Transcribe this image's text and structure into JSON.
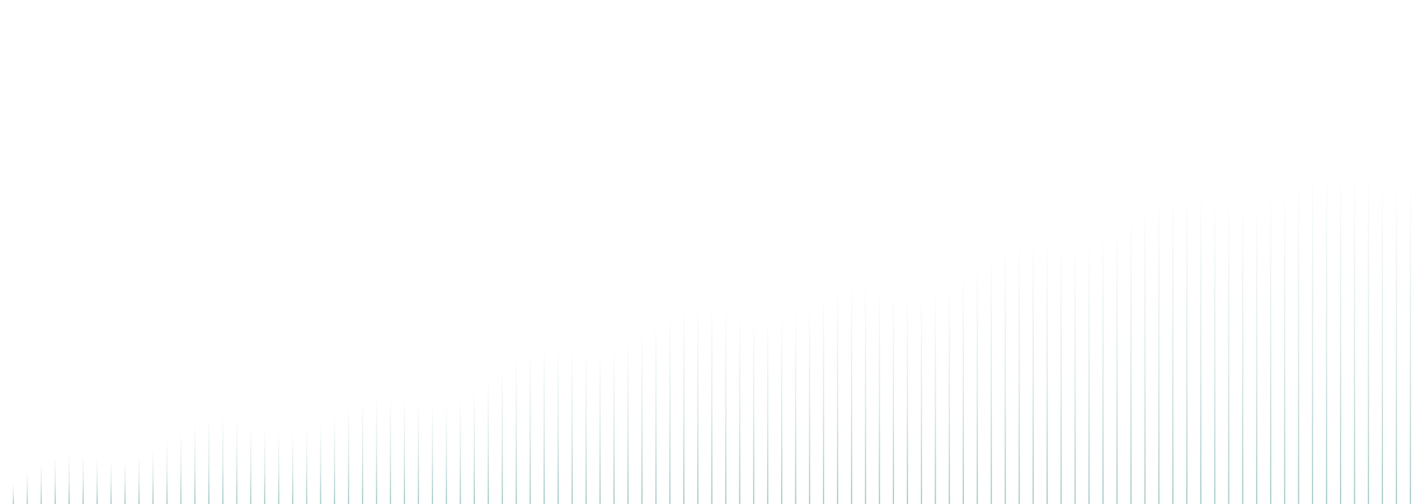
{
  "decoration": {
    "name": "vertical-line-gradient-background",
    "line_color": "#4f9a93",
    "background_color": "#ffffff"
  }
}
